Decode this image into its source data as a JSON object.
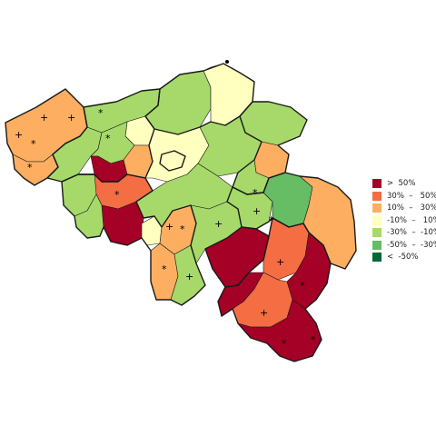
{
  "colors": {
    "gt50": "#a50026",
    "p30_50": "#f46d43",
    "p10_30": "#fdae61",
    "m10_10": "#ffffbf",
    "m30_m10": "#a6d96a",
    "m50_m30": "#66bd63",
    "lt_m50": "#006837"
  },
  "legend": [
    {
      "label": ">  50%",
      "color": "#a50026"
    },
    {
      "label": "30%  –   50%",
      "color": "#f46d43"
    },
    {
      "label": "10%  –   30%",
      "color": "#fdae61"
    },
    {
      "label": "-10%  –   10%",
      "color": "#ffffbf"
    },
    {
      "label": "-30%  –  -10%",
      "color": "#a6d96a"
    },
    {
      "label": "-50%  –  -30%",
      "color": "#66bd63"
    },
    {
      "label": "<  -50%",
      "color": "#006837"
    }
  ],
  "markers": {
    "plus": "+",
    "star": "*"
  }
}
